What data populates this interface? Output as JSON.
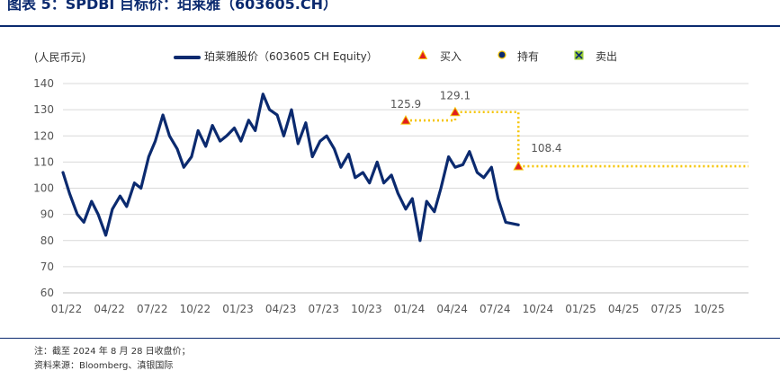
{
  "title": "图表 5：SPDBI 目标价：珀莱雅（603605.CH）",
  "footer": {
    "note": "注：截至 2024 年 8 月 28 日收盘价；",
    "source": "资料来源：Bloomberg、滇银国际"
  },
  "colors": {
    "line": "#0b2a6f",
    "buy": "#e01e1e",
    "target": "#f5c400",
    "grid": "#d9d9d9"
  },
  "chart_data": {
    "type": "line",
    "title": "图表 5：SPDBI 目标价：珀莱雅（603605.CH）",
    "ylabel": "(人民币元)",
    "xlabel": "",
    "ylim": [
      60,
      140
    ],
    "yticks": [
      60,
      70,
      80,
      90,
      100,
      110,
      120,
      130,
      140
    ],
    "xlim": [
      "2022-01",
      "2026-01"
    ],
    "xticks": [
      "01/22",
      "04/22",
      "07/22",
      "10/22",
      "01/23",
      "04/23",
      "07/23",
      "10/23",
      "01/24",
      "04/24",
      "07/24",
      "10/24",
      "01/25",
      "04/25",
      "07/25",
      "10/25"
    ],
    "grid": true,
    "legend": {
      "placement": "top",
      "entries": [
        "珀莱雅股价（603605 CH Equity）",
        "买入",
        "持有",
        "卖出"
      ]
    },
    "series": [
      {
        "name": "珀莱雅股价（603605 CH Equity）",
        "x": [
          "2022-01",
          "2022-01-15",
          "2022-02",
          "2022-02-15",
          "2022-03",
          "2022-03-15",
          "2022-04",
          "2022-04-15",
          "2022-05",
          "2022-05-15",
          "2022-06",
          "2022-06-15",
          "2022-07",
          "2022-07-15",
          "2022-08",
          "2022-08-15",
          "2022-09",
          "2022-09-15",
          "2022-10",
          "2022-10-15",
          "2022-11",
          "2022-11-15",
          "2022-12",
          "2022-12-15",
          "2023-01",
          "2023-01-15",
          "2023-02",
          "2023-02-15",
          "2023-03",
          "2023-03-15",
          "2023-04",
          "2023-04-15",
          "2023-05",
          "2023-05-15",
          "2023-06",
          "2023-06-15",
          "2023-07",
          "2023-07-15",
          "2023-08",
          "2023-08-15",
          "2023-09",
          "2023-09-15",
          "2023-10",
          "2023-10-15",
          "2023-11",
          "2023-11-15",
          "2023-12",
          "2023-12-15",
          "2024-01",
          "2024-01-15",
          "2024-02",
          "2024-02-15",
          "2024-03",
          "2024-03-15",
          "2024-04",
          "2024-04-15",
          "2024-05",
          "2024-05-15",
          "2024-06",
          "2024-06-15",
          "2024-07",
          "2024-07-15",
          "2024-08",
          "2024-08-28"
        ],
        "values": [
          106,
          98,
          90,
          87,
          95,
          90,
          82,
          92,
          97,
          93,
          102,
          100,
          112,
          118,
          128,
          120,
          115,
          108,
          112,
          122,
          116,
          124,
          118,
          120,
          123,
          118,
          126,
          122,
          136,
          130,
          128,
          120,
          130,
          117,
          125,
          112,
          118,
          120,
          115,
          108,
          113,
          104,
          106,
          102,
          110,
          102,
          105,
          98,
          92,
          96,
          80,
          95,
          91,
          100,
          112,
          108,
          109,
          114,
          106,
          104,
          108,
          96,
          87,
          86
        ]
      }
    ],
    "markers": [
      {
        "type": "买入",
        "x": "2024-01",
        "value": 125.9,
        "label": "125.9"
      },
      {
        "type": "买入",
        "x": "2024-04-15",
        "value": 129.1,
        "label": "129.1"
      },
      {
        "type": "买入",
        "x": "2024-08-28",
        "value": 108.4,
        "label": "108.4"
      }
    ]
  }
}
